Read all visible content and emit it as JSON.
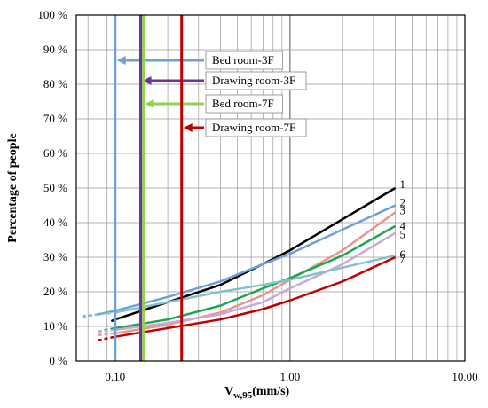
{
  "chart_data": {
    "type": "line",
    "x_scale": "log",
    "xlim": [
      0.06,
      10.0
    ],
    "ylim": [
      0,
      100
    ],
    "xlabel_main": "V",
    "xlabel_sub": "w,95",
    "xlabel_unit": "(mm/s)",
    "ylabel": "Percentage of people",
    "grid": true,
    "x_ticks": [
      {
        "value": 0.1,
        "label": "0.10"
      },
      {
        "value": 1.0,
        "label": "1.00"
      },
      {
        "value": 10.0,
        "label": "10.00"
      }
    ],
    "y_ticks": [
      {
        "value": 0,
        "label": "0 %"
      },
      {
        "value": 10,
        "label": "10 %"
      },
      {
        "value": 20,
        "label": "20 %"
      },
      {
        "value": 30,
        "label": "30 %"
      },
      {
        "value": 40,
        "label": "40 %"
      },
      {
        "value": 50,
        "label": "50 %"
      },
      {
        "value": 60,
        "label": "60 %"
      },
      {
        "value": 70,
        "label": "70 %"
      },
      {
        "value": 80,
        "label": "80 %"
      },
      {
        "value": 90,
        "label": "90 %"
      },
      {
        "value": 100,
        "label": "100 %"
      }
    ],
    "series": [
      {
        "label": "1",
        "color": "#000000",
        "x": [
          0.1,
          0.2,
          0.4,
          0.7,
          1.0,
          2.0,
          4.0
        ],
        "y": [
          12,
          17,
          22,
          28,
          32,
          41,
          50
        ],
        "dashed_x": [
          0.095,
          0.1
        ],
        "dashed_y": [
          11.5,
          12
        ]
      },
      {
        "label": "2",
        "color": "#6f9fd8",
        "x": [
          0.08,
          0.1,
          0.2,
          0.4,
          0.7,
          1.0,
          2.0,
          4.0
        ],
        "y": [
          13.5,
          14.5,
          18.5,
          23,
          28,
          31,
          38,
          45
        ],
        "dashed_x": [
          0.065,
          0.08
        ],
        "dashed_y": [
          12.8,
          13.5
        ]
      },
      {
        "label": "3",
        "color": "#e8968a",
        "x": [
          0.1,
          0.2,
          0.4,
          0.7,
          1.0,
          2.0,
          4.0
        ],
        "y": [
          8,
          10.5,
          14,
          19,
          23.5,
          32,
          43
        ],
        "dashed_x": [
          0.08,
          0.1
        ],
        "dashed_y": [
          7.5,
          8
        ]
      },
      {
        "label": "4",
        "color": "#1aa64f",
        "x": [
          0.1,
          0.2,
          0.4,
          0.7,
          1.0,
          2.0,
          4.0
        ],
        "y": [
          9.5,
          12,
          16,
          21,
          24,
          30.5,
          39
        ],
        "dashed_x": [
          0.08,
          0.1
        ],
        "dashed_y": [
          8.5,
          9.5
        ]
      },
      {
        "label": "5",
        "color": "#c9a8d4",
        "x": [
          0.1,
          0.2,
          0.4,
          0.7,
          1.0,
          2.0,
          4.0
        ],
        "y": [
          9,
          11,
          13.5,
          17,
          21,
          28,
          37
        ],
        "dashed_x": [
          0.08,
          0.1
        ],
        "dashed_y": [
          8.5,
          9
        ]
      },
      {
        "label": "6",
        "color": "#7fc4c8",
        "x": [
          0.1,
          0.2,
          0.4,
          0.7,
          1.0,
          2.0,
          4.0
        ],
        "y": [
          14,
          17,
          20,
          22,
          23.5,
          27,
          30.5
        ],
        "dashed_x": [
          0.065,
          0.1
        ],
        "dashed_y": [
          13,
          14
        ]
      },
      {
        "label": "7",
        "color": "#c00000",
        "x": [
          0.1,
          0.2,
          0.4,
          0.7,
          1.0,
          2.0,
          4.0
        ],
        "y": [
          7,
          9.5,
          12,
          15,
          17.5,
          23,
          30
        ],
        "dashed_x": [
          0.08,
          0.1
        ],
        "dashed_y": [
          6,
          7
        ]
      }
    ],
    "thresholds": [
      {
        "label": "Bed room-3F",
        "color": "#6f9fd8",
        "x": 0.1
      },
      {
        "label": "Drawing room-3F",
        "color": "#7030a0",
        "x": 0.14
      },
      {
        "label": "Bed room-7F",
        "color": "#92d050",
        "x": 0.145
      },
      {
        "label": "Drawing room-7F",
        "color": "#c00000",
        "x": 0.24
      }
    ]
  }
}
